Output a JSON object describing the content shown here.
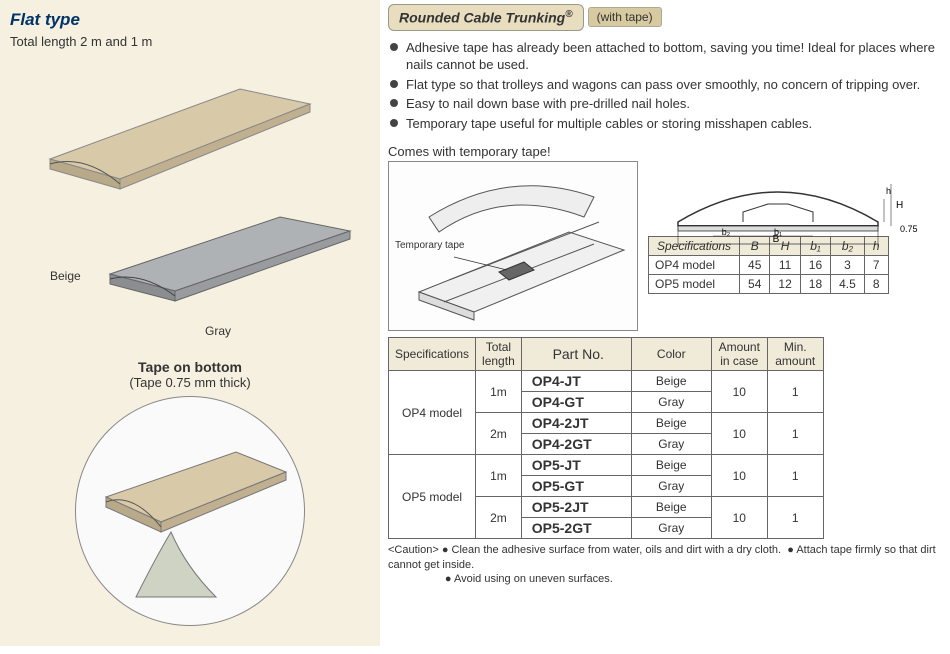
{
  "left": {
    "title": "Flat type",
    "subtitle": "Total length 2 m and 1 m",
    "color_beige": "Beige",
    "color_gray": "Gray",
    "circle_title": "Tape on bottom",
    "circle_sub": "(Tape 0.75 mm thick)"
  },
  "right": {
    "title": "Rounded Cable Trunking",
    "reg": "®",
    "tag": "(with tape)",
    "bullets": [
      "Adhesive tape has already been attached to bottom, saving you time! Ideal for places where nails cannot be used.",
      "Flat type so that trolleys and wagons can pass over smoothly, no concern of tripping over.",
      "Easy to nail down base with pre-drilled nail holes.",
      "Temporary tape useful for multiple cables or storing misshapen cables."
    ],
    "diagram_title": "Comes with temporary tape!",
    "temp_tape_label": "Temporary tape",
    "dim_labels": {
      "B": "B",
      "H": "H",
      "b1": "b₁",
      "b2": "b₂",
      "h": "h",
      "tape_thick": "0.75"
    },
    "dim_table": {
      "header": [
        "Specifications",
        "B",
        "H",
        "b₁",
        "b₂",
        "h"
      ],
      "rows": [
        {
          "label": "OP4 model",
          "B": "45",
          "H": "11",
          "b1": "16",
          "b2": "3",
          "h": "7"
        },
        {
          "label": "OP5 model",
          "B": "54",
          "H": "12",
          "b1": "18",
          "b2": "4.5",
          "h": "8"
        }
      ]
    },
    "part_table": {
      "header": [
        "Specifications",
        "Total length",
        "Part No.",
        "Color",
        "Amount in case",
        "Min. amount"
      ],
      "groups": [
        {
          "spec": "OP4 model",
          "lengths": [
            {
              "len": "1m",
              "rows": [
                {
                  "part": "OP4-JT",
                  "color": "Beige"
                },
                {
                  "part": "OP4-GT",
                  "color": "Gray"
                }
              ],
              "amount": "10",
              "min": "1"
            },
            {
              "len": "2m",
              "rows": [
                {
                  "part": "OP4-2JT",
                  "color": "Beige"
                },
                {
                  "part": "OP4-2GT",
                  "color": "Gray"
                }
              ],
              "amount": "10",
              "min": "1"
            }
          ]
        },
        {
          "spec": "OP5 model",
          "lengths": [
            {
              "len": "1m",
              "rows": [
                {
                  "part": "OP5-JT",
                  "color": "Beige"
                },
                {
                  "part": "OP5-GT",
                  "color": "Gray"
                }
              ],
              "amount": "10",
              "min": "1"
            },
            {
              "len": "2m",
              "rows": [
                {
                  "part": "OP5-2JT",
                  "color": "Beige"
                },
                {
                  "part": "OP5-2GT",
                  "color": "Gray"
                }
              ],
              "amount": "10",
              "min": "1"
            }
          ]
        }
      ]
    },
    "caution_label": "<Caution>",
    "caution_items": [
      "Clean the adhesive surface from water, oils and dirt with a dry cloth.",
      "Attach tape firmly so that dirt cannot get inside.",
      "Avoid using on uneven surfaces."
    ]
  },
  "colors": {
    "beige_trunking": "#d8c9a8",
    "gray_trunking": "#9ea3a6",
    "panel_bg": "#f5f0e0",
    "title_box_bg": "#e8ddbf",
    "tag_bg": "#d8caa0"
  }
}
